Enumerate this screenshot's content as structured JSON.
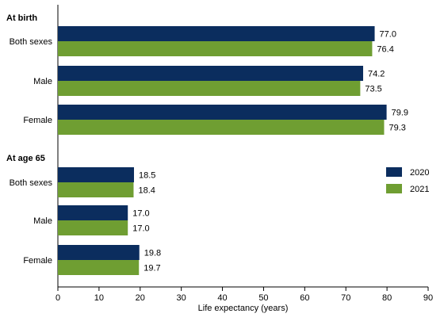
{
  "chart_data": {
    "type": "bar",
    "orientation": "horizontal",
    "xlabel": "Life expectancy (years)",
    "xlim": [
      0,
      90
    ],
    "xticks": [
      0,
      10,
      20,
      30,
      40,
      50,
      60,
      70,
      80,
      90
    ],
    "groups": [
      {
        "label": "At birth",
        "categories": [
          "Both sexes",
          "Male",
          "Female"
        ],
        "series": [
          {
            "name": "2020",
            "values": [
              77.0,
              74.2,
              79.9
            ]
          },
          {
            "name": "2021",
            "values": [
              76.4,
              73.5,
              79.3
            ]
          }
        ]
      },
      {
        "label": "At age 65",
        "categories": [
          "Both sexes",
          "Male",
          "Female"
        ],
        "series": [
          {
            "name": "2020",
            "values": [
              18.5,
              17.0,
              19.8
            ]
          },
          {
            "name": "2021",
            "values": [
              18.4,
              17.0,
              19.7
            ]
          }
        ]
      }
    ],
    "legend": [
      {
        "name": "2020",
        "color": "#0b2d5e"
      },
      {
        "name": "2021",
        "color": "#6f9e32"
      }
    ],
    "legend_position": "right",
    "grid": false
  }
}
